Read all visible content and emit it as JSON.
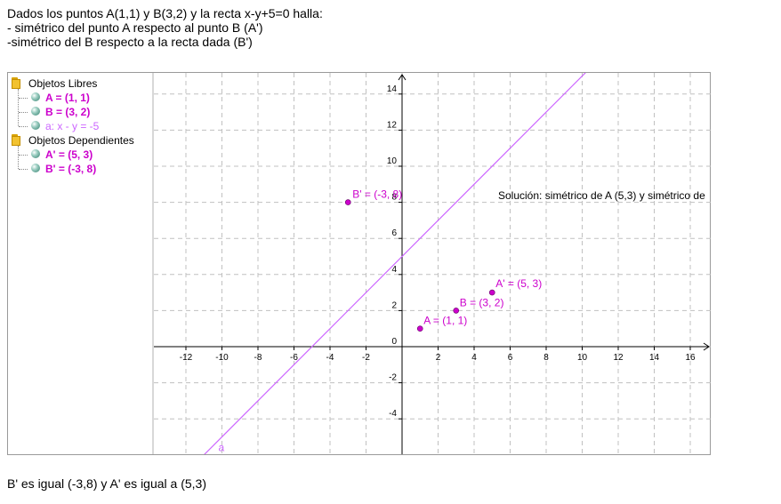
{
  "intro": {
    "line1": "Dados los puntos A(1,1) y B(3,2) y la recta x-y+5=0 halla:",
    "line2": "- simétrico del punto A respecto al punto B (A')",
    "line3": "-simétrico del B respecto a la recta dada (B')"
  },
  "algebra": {
    "free_folder": "Objetos Libres",
    "free_items": [
      "A = (1, 1)",
      "B = (3, 2)",
      "a: x - y = -5"
    ],
    "dependent_folder": "Objetos Dependientes",
    "dependent_items": [
      "A' = (5, 3)",
      "B' = (-3, 8)"
    ]
  },
  "graph": {
    "x_ticks": [
      "-12",
      "-10",
      "-8",
      "-6",
      "-4",
      "-2",
      "2",
      "4",
      "6",
      "8",
      "10",
      "12",
      "14",
      "16"
    ],
    "y_ticks": [
      "14",
      "12",
      "10",
      "8",
      "6",
      "4",
      "2",
      "0",
      "-2",
      "-4"
    ],
    "point_labels": {
      "A": "A = (1, 1)",
      "B": "B = (3, 2)",
      "A_prime": "A' = (5, 3)",
      "B_prime": "B' = (-3, 8)"
    },
    "line_label": "a",
    "solution_text": "Solución: simétrico de A (5,3) y simétrico de",
    "colors": {
      "point": "#cc00cc",
      "line": "#cc66ff",
      "grid": "#c0c0c0",
      "axis": "#000000"
    }
  },
  "footer": {
    "text": "B' es igual (-3,8) y A' es igual a (5,3)"
  }
}
